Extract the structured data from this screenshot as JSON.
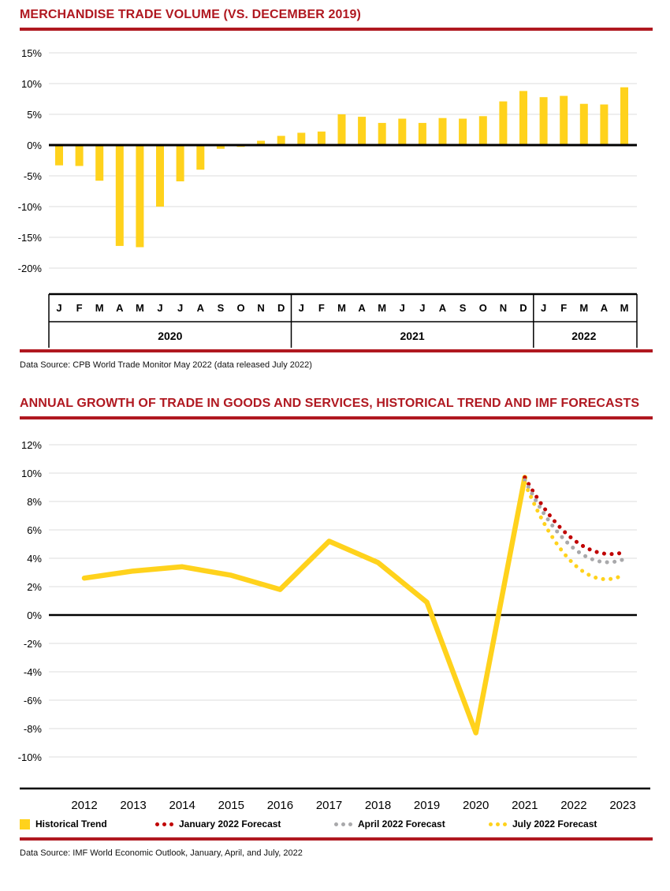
{
  "colors": {
    "rule_red": "#b01820",
    "forecast_red": "#c00000",
    "yellow": "#ffd21c",
    "gray": "#a9a9ab",
    "grid": "#dedede"
  },
  "chart1": {
    "title": "MERCHANDISE TRADE VOLUME (VS. DECEMBER 2019)",
    "source": "Data Source: CPB World Trade Monitor May 2022 (data released July 2022)",
    "chart_data": {
      "type": "bar",
      "title": "Merchandise trade volume (vs. December 2019)",
      "ylabel": "% vs. December 2019",
      "ylim": [
        -20,
        15
      ],
      "yticks": [
        15,
        10,
        5,
        0,
        -5,
        -10,
        -15,
        -20
      ],
      "bar_color": "yellow",
      "groups": [
        {
          "year": "2020",
          "months": [
            "J",
            "F",
            "M",
            "A",
            "M",
            "J",
            "J",
            "A",
            "S",
            "O",
            "N",
            "D"
          ],
          "values": [
            -3.3,
            -3.4,
            -5.8,
            -16.4,
            -16.6,
            -10.0,
            -5.9,
            -4.0,
            -0.6,
            -0.3,
            0.7,
            1.5
          ]
        },
        {
          "year": "2021",
          "months": [
            "J",
            "F",
            "M",
            "A",
            "M",
            "J",
            "J",
            "A",
            "S",
            "O",
            "N",
            "D"
          ],
          "values": [
            2.0,
            2.2,
            5.0,
            4.6,
            3.6,
            4.3,
            3.6,
            4.4,
            4.3,
            4.7,
            7.1,
            8.8
          ]
        },
        {
          "year": "2022",
          "months": [
            "J",
            "F",
            "M",
            "A",
            "M"
          ],
          "values": [
            7.8,
            8.0,
            6.7,
            6.6,
            9.4
          ]
        }
      ]
    }
  },
  "chart2": {
    "title": "ANNUAL GROWTH OF TRADE IN GOODS AND SERVICES, HISTORICAL TREND AND IMF FORECASTS",
    "source": "Data Source: IMF World Economic Outlook, January, April, and July, 2022",
    "legend": [
      {
        "label": "Historical Trend",
        "type": "square",
        "color": "yellow"
      },
      {
        "label": "January 2022 Forecast",
        "type": "dots",
        "color": "forecast_red"
      },
      {
        "label": "April 2022 Forecast",
        "type": "dots",
        "color": "gray"
      },
      {
        "label": "July 2022 Forecast",
        "type": "dots",
        "color": "yellow"
      }
    ],
    "chart_data": {
      "type": "line",
      "title": "Annual growth of trade in goods and services, historical trend and IMF forecasts",
      "years": [
        2012,
        2013,
        2014,
        2015,
        2016,
        2017,
        2018,
        2019,
        2020,
        2021,
        2022,
        2023
      ],
      "ylim": [
        -10,
        12
      ],
      "yticks": [
        12,
        10,
        8,
        6,
        4,
        2,
        0,
        -2,
        -4,
        -6,
        -8,
        -10
      ],
      "series": [
        {
          "name": "Historical Trend",
          "style": "solid",
          "color": "yellow",
          "x": [
            2012,
            2013,
            2014,
            2015,
            2016,
            2017,
            2018,
            2019,
            2020,
            2021
          ],
          "values": [
            2.6,
            3.1,
            3.4,
            2.8,
            1.8,
            5.2,
            3.7,
            0.9,
            -8.3,
            9.7
          ]
        },
        {
          "name": "January 2022 Forecast",
          "style": "dotted",
          "color": "forecast_red",
          "x": [
            2021,
            2022,
            2023
          ],
          "values": [
            9.7,
            5.3,
            4.4
          ]
        },
        {
          "name": "April 2022 Forecast",
          "style": "dotted",
          "color": "gray",
          "x": [
            2021,
            2022,
            2023
          ],
          "values": [
            9.5,
            4.7,
            3.9
          ]
        },
        {
          "name": "July 2022 Forecast",
          "style": "dotted",
          "color": "yellow",
          "x": [
            2021,
            2022,
            2023
          ],
          "values": [
            9.3,
            3.6,
            2.8
          ]
        }
      ]
    }
  }
}
